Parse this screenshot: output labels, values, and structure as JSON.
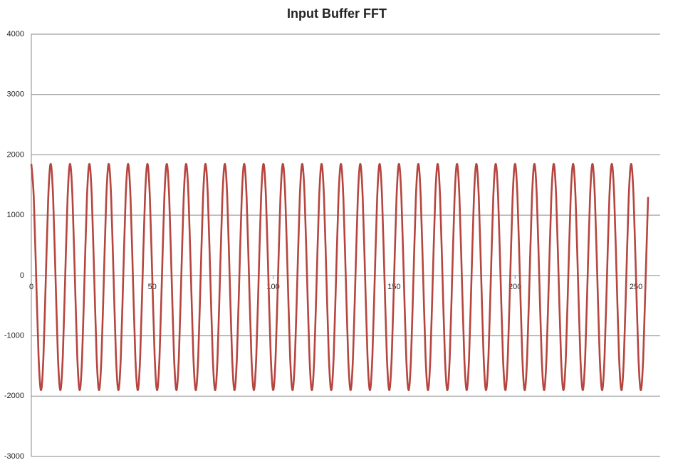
{
  "chart_data": {
    "type": "line",
    "title": "Input Buffer FFT",
    "x": [
      0,
      1,
      2,
      3,
      4,
      5,
      6,
      7,
      8,
      9,
      10,
      11,
      12,
      13,
      14,
      15,
      16,
      17,
      18,
      19,
      20,
      21,
      22,
      23,
      24,
      25,
      26,
      27,
      28,
      29,
      30,
      31,
      32,
      33,
      34,
      35,
      36,
      37,
      38,
      39,
      40,
      41,
      42,
      43,
      44,
      45,
      46,
      47,
      48,
      49,
      50,
      51,
      52,
      53,
      54,
      55,
      56,
      57,
      58,
      59,
      60,
      61,
      62,
      63,
      64,
      65,
      66,
      67,
      68,
      69,
      70,
      71,
      72,
      73,
      74,
      75,
      76,
      77,
      78,
      79,
      80,
      81,
      82,
      83,
      84,
      85,
      86,
      87,
      88,
      89,
      90,
      91,
      92,
      93,
      94,
      95,
      96,
      97,
      98,
      99,
      100,
      101,
      102,
      103,
      104,
      105,
      106,
      107,
      108,
      109,
      110,
      111,
      112,
      113,
      114,
      115,
      116,
      117,
      118,
      119,
      120,
      121,
      122,
      123,
      124,
      125,
      126,
      127,
      128,
      129,
      130,
      131,
      132,
      133,
      134,
      135,
      136,
      137,
      138,
      139,
      140,
      141,
      142,
      143,
      144,
      145,
      146,
      147,
      148,
      149,
      150,
      151,
      152,
      153,
      154,
      155,
      156,
      157,
      158,
      159,
      160,
      161,
      162,
      163,
      164,
      165,
      166,
      167,
      168,
      169,
      170,
      171,
      172,
      173,
      174,
      175,
      176,
      177,
      178,
      179,
      180,
      181,
      182,
      183,
      184,
      185,
      186,
      187,
      188,
      189,
      190,
      191,
      192,
      193,
      194,
      195,
      196,
      197,
      198,
      199,
      200,
      201,
      202,
      203,
      204,
      205,
      206,
      207,
      208,
      209,
      210,
      211,
      212,
      213,
      214,
      215,
      216,
      217,
      218,
      219,
      220,
      221,
      222,
      223,
      224,
      225,
      226,
      227,
      228,
      229,
      230,
      231,
      232,
      233,
      234,
      235,
      236,
      237,
      238,
      239,
      240,
      241,
      242,
      243,
      244,
      245,
      246,
      247,
      248,
      249,
      250,
      251,
      252,
      253,
      254,
      255
    ],
    "series": [
      {
        "color": "#b5453f",
        "values": [
          1850,
          1301,
          -25,
          -1351,
          -1900,
          -1351,
          -25,
          1301,
          1850,
          1301,
          -25,
          -1351,
          -1900,
          -1351,
          -25,
          1301,
          1850,
          1301,
          -25,
          -1351,
          -1900,
          -1351,
          -25,
          1301,
          1850,
          1301,
          -25,
          -1351,
          -1900,
          -1351,
          -25,
          1301,
          1850,
          1301,
          -25,
          -1351,
          -1900,
          -1351,
          -25,
          1301,
          1850,
          1301,
          -25,
          -1351,
          -1900,
          -1351,
          -25,
          1301,
          1850,
          1301,
          -25,
          -1351,
          -1900,
          -1351,
          -25,
          1301,
          1850,
          1301,
          -25,
          -1351,
          -1900,
          -1351,
          -25,
          1301,
          1850,
          1301,
          -25,
          -1351,
          -1900,
          -1351,
          -25,
          1301,
          1850,
          1301,
          -25,
          -1351,
          -1900,
          -1351,
          -25,
          1301,
          1850,
          1301,
          -25,
          -1351,
          -1900,
          -1351,
          -25,
          1301,
          1850,
          1301,
          -25,
          -1351,
          -1900,
          -1351,
          -25,
          1301,
          1850,
          1301,
          -25,
          -1351,
          -1900,
          -1351,
          -25,
          1301,
          1850,
          1301,
          -25,
          -1351,
          -1900,
          -1351,
          -25,
          1301,
          1850,
          1301,
          -25,
          -1351,
          -1900,
          -1351,
          -25,
          1301,
          1850,
          1301,
          -25,
          -1351,
          -1900,
          -1351,
          -25,
          1301,
          1850,
          1301,
          -25,
          -1351,
          -1900,
          -1351,
          -25,
          1301,
          1850,
          1301,
          -25,
          -1351,
          -1900,
          -1351,
          -25,
          1301,
          1850,
          1301,
          -25,
          -1351,
          -1900,
          -1351,
          -25,
          1301,
          1850,
          1301,
          -25,
          -1351,
          -1900,
          -1351,
          -25,
          1301,
          1850,
          1301,
          -25,
          -1351,
          -1900,
          -1351,
          -25,
          1301,
          1850,
          1301,
          -25,
          -1351,
          -1900,
          -1351,
          -25,
          1301,
          1850,
          1301,
          -25,
          -1351,
          -1900,
          -1351,
          -25,
          1301,
          1850,
          1301,
          -25,
          -1351,
          -1900,
          -1351,
          -25,
          1301,
          1850,
          1301,
          -25,
          -1351,
          -1900,
          -1351,
          -25,
          1301,
          1850,
          1301,
          -25,
          -1351,
          -1900,
          -1351,
          -25,
          1301,
          1850,
          1301,
          -25,
          -1351,
          -1900,
          -1351,
          -25,
          1301,
          1850,
          1301,
          -25,
          -1351,
          -1900,
          -1351,
          -25,
          1301,
          1850,
          1301,
          -25,
          -1351,
          -1900,
          -1351,
          -25,
          1301,
          1850,
          1301,
          -25,
          -1351,
          -1900,
          -1351,
          -25,
          1301,
          1850,
          1301,
          -25,
          -1351,
          -1900,
          -1351,
          -25,
          1301,
          1850,
          1301,
          -25,
          -1351,
          -1900,
          -1351,
          -25,
          1301
        ]
      }
    ],
    "xlim": [
      0,
      260
    ],
    "xticks": [
      0,
      50,
      100,
      150,
      200,
      250
    ],
    "ylim": [
      -3000,
      4000
    ],
    "yticks": [
      -3000,
      -2000,
      -1000,
      0,
      1000,
      2000,
      3000,
      4000
    ],
    "grid": true
  }
}
